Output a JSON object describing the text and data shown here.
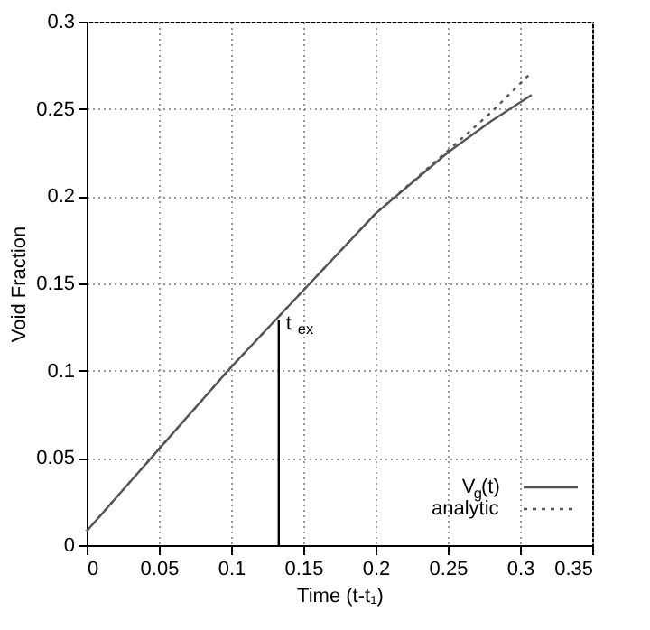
{
  "chart_data": {
    "type": "line",
    "xlabel": "Time (t-t₁)",
    "ylabel": "Void Fraction",
    "x": [
      0,
      0.05,
      0.1,
      0.15,
      0.2,
      0.25,
      0.28,
      0.308
    ],
    "series": [
      {
        "name": "V$_{g}$(t)",
        "color": "#555555",
        "line_style": "solid",
        "values": [
          0.008,
          0.055,
          0.102,
          0.146,
          0.19,
          0.225,
          0.243,
          0.258
        ]
      },
      {
        "name": "analytic",
        "color": "#555555",
        "line_style": "dotted",
        "values": [
          0.008,
          0.055,
          0.102,
          0.146,
          0.19,
          0.226,
          0.248,
          0.271
        ]
      },
      {
        "color": "#000000",
        "line_style": "solid",
        "x": [
          0.133,
          0.133
        ],
        "values": [
          0,
          0.129
        ]
      }
    ],
    "annotations": [
      {
        "text": "t$_{ex}$",
        "x": 0.133,
        "y": 0.129
      }
    ],
    "xlim": [
      0,
      0.35
    ],
    "xticks": [
      0,
      0.05,
      0.1,
      0.15,
      0.2,
      0.25,
      0.3,
      0.35
    ],
    "ylim": [
      0,
      0.3
    ],
    "yticks": [
      0,
      0.05,
      0.1,
      0.15,
      0.2,
      0.25,
      0.3
    ],
    "grid": true,
    "legend": "bottom right",
    "marker": "none"
  }
}
